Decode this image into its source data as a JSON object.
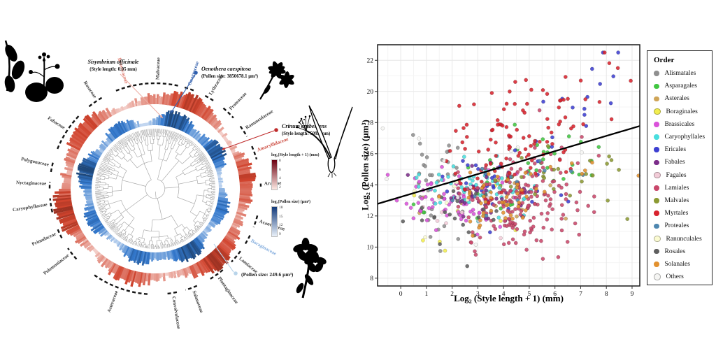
{
  "phylo": {
    "tree": {
      "seed": 7,
      "max_depth": 8,
      "min_span": 1.7,
      "leaf_radius": 86
    },
    "ring_colors": {
      "style_length_ring": "#c0392b",
      "pollen_size_ring": "#2e5fa3"
    },
    "families": [
      {
        "name": "Malvaceae",
        "angle": 2,
        "span": 24,
        "color": "#3a3a3a"
      },
      {
        "name": "Onagraceae",
        "angle": 19,
        "span": 8,
        "color": "#3b66b0"
      },
      {
        "name": "Lythraceae",
        "angle": 31,
        "span": 8,
        "color": "#3a3a3a"
      },
      {
        "name": "Proteaceae",
        "angle": 44,
        "span": 10,
        "color": "#3a3a3a"
      },
      {
        "name": "Ranunculaceae",
        "angle": 57,
        "span": 9,
        "color": "#3a3a3a"
      },
      {
        "name": "Amaryllidaceae",
        "angle": 70,
        "span": 10,
        "color": "#cc4b3f"
      },
      {
        "name": "Araceae",
        "angle": 88,
        "span": 4,
        "color": "#3a3a3a"
      },
      {
        "name": "Acanthaceae",
        "angle": 108,
        "span": 9,
        "color": "#3a3a3a"
      },
      {
        "name": "Boraginaceae",
        "angle": 119,
        "span": 8,
        "color": "#85aede"
      },
      {
        "name": "Lamiaceae",
        "angle": 130,
        "span": 10,
        "color": "#3a3a3a"
      },
      {
        "name": "Plantaginaceae",
        "angle": 145,
        "span": 12,
        "color": "#3a3a3a"
      },
      {
        "name": "Solanaceae",
        "angle": 160,
        "span": 9,
        "color": "#3a3a3a"
      },
      {
        "name": "Convolvulaceae",
        "angle": 171,
        "span": 8,
        "color": "#3a3a3a"
      },
      {
        "name": "Asteraceae",
        "angle": 200,
        "span": 34,
        "color": "#3a3a3a"
      },
      {
        "name": "Polemoniaceae",
        "angle": 232,
        "span": 10,
        "color": "#3a3a3a"
      },
      {
        "name": "Primulaceae",
        "angle": 245,
        "span": 8,
        "color": "#3a3a3a"
      },
      {
        "name": "Caryophyllaceae",
        "angle": 261,
        "span": 10,
        "color": "#3a3a3a"
      },
      {
        "name": "Nyctaginaceae",
        "angle": 272,
        "span": 6,
        "color": "#3a3a3a"
      },
      {
        "name": "Polygonaceae",
        "angle": 282,
        "span": 8,
        "color": "#3a3a3a"
      },
      {
        "name": "Fabaceae",
        "angle": 303,
        "span": 24,
        "color": "#3a3a3a"
      },
      {
        "name": "Rosaceae",
        "angle": 326,
        "span": 12,
        "color": "#3a3a3a"
      },
      {
        "name": "Brassicaceae",
        "angle": 344,
        "span": 14,
        "color": "#e07b6f"
      }
    ],
    "species_annotations": [
      {
        "name": "Sisymbrium officinale",
        "detail": "(Style length: 0.05 mm)",
        "color": "#eeb0a6"
      },
      {
        "name": "Oenothera caespitosa",
        "detail": "(Pollen size: 3850678.1 μm³)",
        "color": "#2f5fae"
      },
      {
        "name": "Crinum erubescens",
        "detail": "(Style length: 509.2mm)",
        "color": "#bf2b2b"
      },
      {
        "name": "",
        "detail": "(Pollen size: 249.6 μm³)",
        "color": "#b8d4ea"
      }
    ],
    "ring_legends": [
      {
        "title": "log₂(Style length + 1) (mm)",
        "ticks": [
          "8",
          "6",
          "4",
          "2"
        ],
        "gradient_top": "#6b0010",
        "gradient_bottom": "#fdeae4"
      },
      {
        "title": "log₂(Pollen size) (μm³)",
        "ticks": [
          "18",
          "15",
          "12",
          "9"
        ],
        "gradient_top": "#123a7a",
        "gradient_bottom": "#eaf1fa"
      }
    ]
  },
  "chart_data": {
    "type": "scatter",
    "title": "",
    "xlabel": "Log₂ (Style length + 1) (mm)",
    "ylabel": "Log₂ (Pollen size) (μm³)",
    "legend_title": "Order",
    "x_ticks": [
      0,
      1,
      2,
      3,
      4,
      5,
      6,
      7,
      8,
      9
    ],
    "y_ticks": [
      8,
      10,
      12,
      14,
      16,
      18,
      20,
      22
    ],
    "xlim": [
      -0.9,
      9.3
    ],
    "ylim": [
      7.5,
      23.0
    ],
    "grid": true,
    "legend_position": "right",
    "regression_line": {
      "x1": -0.9,
      "y1": 12.78,
      "x2": 9.3,
      "y2": 17.78
    },
    "seed": 11,
    "points_note": "~730 points; per-order cluster distributions estimated from figure",
    "series": [
      {
        "name": "Alismatales",
        "color": "#8f8f8f",
        "clusters": [
          {
            "n": 22,
            "cx": 1.4,
            "cy": 15.4,
            "sx": 0.6,
            "sy": 0.8
          },
          {
            "n": 12,
            "cx": 1.8,
            "cy": 11.6,
            "sx": 0.8,
            "sy": 0.9
          }
        ]
      },
      {
        "name": "Asparagales",
        "color": "#41c641",
        "clusters": [
          {
            "n": 26,
            "cx": 5.6,
            "cy": 15.6,
            "sx": 0.9,
            "sy": 1.0
          },
          {
            "n": 10,
            "cx": 4.0,
            "cy": 13.5,
            "sx": 1.0,
            "sy": 1.0
          },
          {
            "n": 3,
            "cx": 0.8,
            "cy": 12.4,
            "sx": 0.4,
            "sy": 0.5
          }
        ]
      },
      {
        "name": "Asterales",
        "color": "#cfa558",
        "clusters": [
          {
            "n": 18,
            "cx": 3.2,
            "cy": 12.8,
            "sx": 1.2,
            "sy": 1.0
          }
        ]
      },
      {
        "name": "Boraginales",
        "color": "#f2ee4f",
        "clusters": [
          {
            "n": 8,
            "cx": 2.2,
            "cy": 11.0,
            "sx": 1.2,
            "sy": 1.2
          }
        ]
      },
      {
        "name": "Brassicales",
        "color": "#da52da",
        "clusters": [
          {
            "n": 70,
            "cx": 1.9,
            "cy": 13.1,
            "sx": 0.9,
            "sy": 0.9
          }
        ]
      },
      {
        "name": "Caryophyllales",
        "color": "#49dede",
        "clusters": [
          {
            "n": 55,
            "cx": 3.1,
            "cy": 13.7,
            "sx": 1.0,
            "sy": 1.0
          },
          {
            "n": 8,
            "cx": 1.2,
            "cy": 14.2,
            "sx": 0.5,
            "sy": 0.6
          }
        ]
      },
      {
        "name": "Ericales",
        "color": "#3d3fd1",
        "clusters": [
          {
            "n": 30,
            "cx": 4.3,
            "cy": 14.0,
            "sx": 1.2,
            "sy": 1.5
          },
          {
            "n": 8,
            "cx": 6.8,
            "cy": 19.5,
            "sx": 0.8,
            "sy": 1.2
          },
          {
            "n": 5,
            "cx": 7.6,
            "cy": 20.2,
            "sx": 0.7,
            "sy": 1.3
          }
        ]
      },
      {
        "name": "Fabales",
        "color": "#7c2d8a",
        "clusters": [
          {
            "n": 45,
            "cx": 3.4,
            "cy": 13.2,
            "sx": 0.9,
            "sy": 1.0
          }
        ]
      },
      {
        "name": "Fagales",
        "color": "#f2ccd8",
        "clusters": [
          {
            "n": 8,
            "cx": 2.3,
            "cy": 12.3,
            "sx": 0.8,
            "sy": 0.8
          }
        ]
      },
      {
        "name": "Lamiales",
        "color": "#c9486b",
        "clusters": [
          {
            "n": 150,
            "cx": 4.6,
            "cy": 12.9,
            "sx": 1.15,
            "sy": 1.4
          },
          {
            "n": 25,
            "cx": 5.8,
            "cy": 15.0,
            "sx": 1.0,
            "sy": 1.2
          }
        ]
      },
      {
        "name": "Malvales",
        "color": "#8c9a33",
        "clusters": [
          {
            "n": 20,
            "cx": 5.6,
            "cy": 14.6,
            "sx": 1.4,
            "sy": 1.4
          },
          {
            "n": 4,
            "cx": 8.2,
            "cy": 15.6,
            "sx": 0.6,
            "sy": 0.8
          }
        ]
      },
      {
        "name": "Myrtales",
        "color": "#d8232e",
        "clusters": [
          {
            "n": 70,
            "cx": 4.3,
            "cy": 16.8,
            "sx": 1.4,
            "sy": 1.7
          },
          {
            "n": 22,
            "cx": 5.8,
            "cy": 19.2,
            "sx": 1.2,
            "sy": 1.2
          },
          {
            "n": 14,
            "cx": 3.4,
            "cy": 14.2,
            "sx": 0.8,
            "sy": 0.8
          },
          {
            "n": 6,
            "cx": 7.9,
            "cy": 20.6,
            "sx": 0.6,
            "sy": 1.1
          }
        ]
      },
      {
        "name": "Proteales",
        "color": "#4e87b0",
        "clusters": [
          {
            "n": 12,
            "cx": 3.8,
            "cy": 14.0,
            "sx": 1.3,
            "sy": 1.2
          }
        ]
      },
      {
        "name": "Ranunculales",
        "color": "#fbfbd2",
        "clusters": [
          {
            "n": 8,
            "cx": 2.2,
            "cy": 13.2,
            "sx": 1.0,
            "sy": 1.0
          }
        ]
      },
      {
        "name": "Rosales",
        "color": "#5f5f5f",
        "clusters": [
          {
            "n": 22,
            "cx": 2.1,
            "cy": 11.9,
            "sx": 0.9,
            "sy": 1.0
          }
        ]
      },
      {
        "name": "Solanales",
        "color": "#e2912f",
        "clusters": [
          {
            "n": 45,
            "cx": 3.9,
            "cy": 13.1,
            "sx": 0.9,
            "sy": 1.0
          },
          {
            "n": 6,
            "cx": 7.6,
            "cy": 15.3,
            "sx": 0.7,
            "sy": 0.6
          }
        ]
      },
      {
        "name": "Others",
        "color": "#f5f5f3",
        "clusters": [
          {
            "n": 12,
            "cx": 3.0,
            "cy": 14.5,
            "sx": 1.8,
            "sy": 1.8
          }
        ]
      }
    ]
  }
}
